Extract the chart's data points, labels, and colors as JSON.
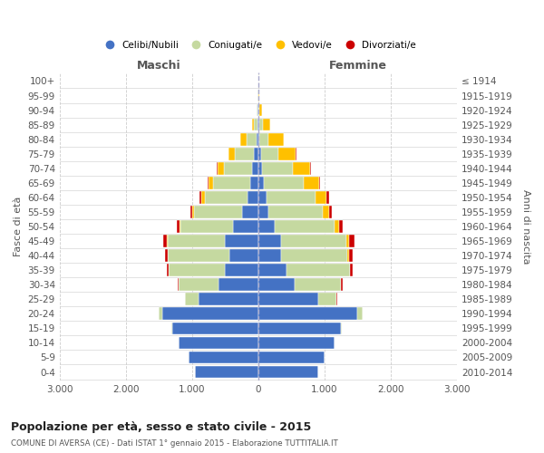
{
  "age_groups": [
    "0-4",
    "5-9",
    "10-14",
    "15-19",
    "20-24",
    "25-29",
    "30-34",
    "35-39",
    "40-44",
    "45-49",
    "50-54",
    "55-59",
    "60-64",
    "65-69",
    "70-74",
    "75-79",
    "80-84",
    "85-89",
    "90-94",
    "95-99",
    "100+"
  ],
  "birth_years": [
    "2010-2014",
    "2005-2009",
    "2000-2004",
    "1995-1999",
    "1990-1994",
    "1985-1989",
    "1980-1984",
    "1975-1979",
    "1970-1974",
    "1965-1969",
    "1960-1964",
    "1955-1959",
    "1950-1954",
    "1945-1949",
    "1940-1944",
    "1935-1939",
    "1930-1934",
    "1925-1929",
    "1920-1924",
    "1915-1919",
    "≤ 1914"
  ],
  "maschi": {
    "celibi": [
      950,
      1050,
      1200,
      1300,
      1450,
      900,
      600,
      500,
      430,
      500,
      380,
      250,
      160,
      120,
      90,
      60,
      25,
      15,
      5,
      2,
      2
    ],
    "coniugati": [
      5,
      5,
      5,
      10,
      50,
      200,
      600,
      850,
      930,
      870,
      800,
      720,
      650,
      560,
      430,
      290,
      150,
      50,
      15,
      3,
      1
    ],
    "vedovi": [
      0,
      0,
      0,
      0,
      0,
      0,
      2,
      3,
      5,
      5,
      15,
      25,
      50,
      70,
      100,
      100,
      90,
      35,
      5,
      1,
      0
    ],
    "divorziati": [
      0,
      0,
      0,
      0,
      2,
      5,
      15,
      30,
      45,
      60,
      40,
      30,
      30,
      20,
      10,
      5,
      2,
      0,
      0,
      0,
      0
    ]
  },
  "femmine": {
    "nubili": [
      900,
      1000,
      1150,
      1250,
      1500,
      900,
      550,
      430,
      350,
      350,
      250,
      150,
      120,
      90,
      60,
      40,
      20,
      15,
      8,
      3,
      2
    ],
    "coniugate": [
      5,
      5,
      5,
      15,
      80,
      280,
      700,
      950,
      1000,
      980,
      900,
      820,
      750,
      600,
      460,
      270,
      130,
      50,
      15,
      3,
      1
    ],
    "vedove": [
      0,
      0,
      0,
      0,
      1,
      2,
      5,
      10,
      20,
      40,
      70,
      100,
      160,
      230,
      260,
      260,
      230,
      120,
      30,
      5,
      1
    ],
    "divorziate": [
      0,
      0,
      0,
      0,
      2,
      5,
      15,
      35,
      55,
      80,
      60,
      40,
      35,
      20,
      10,
      5,
      2,
      0,
      0,
      0,
      0
    ]
  },
  "colors": {
    "celibi": "#4472c4",
    "coniugati": "#c5d9a0",
    "vedovi": "#ffc000",
    "divorziati": "#cc0000"
  },
  "xlim": 3000,
  "title": "Popolazione per età, sesso e stato civile - 2015",
  "subtitle": "COMUNE DI AVERSA (CE) - Dati ISTAT 1° gennaio 2015 - Elaborazione TUTTITALIA.IT",
  "ylabel_left": "Fasce di età",
  "ylabel_right": "Anni di nascita",
  "col_maschi": "Maschi",
  "col_femmine": "Femmine",
  "bg_color": "#ffffff",
  "grid_color": "#cccccc"
}
